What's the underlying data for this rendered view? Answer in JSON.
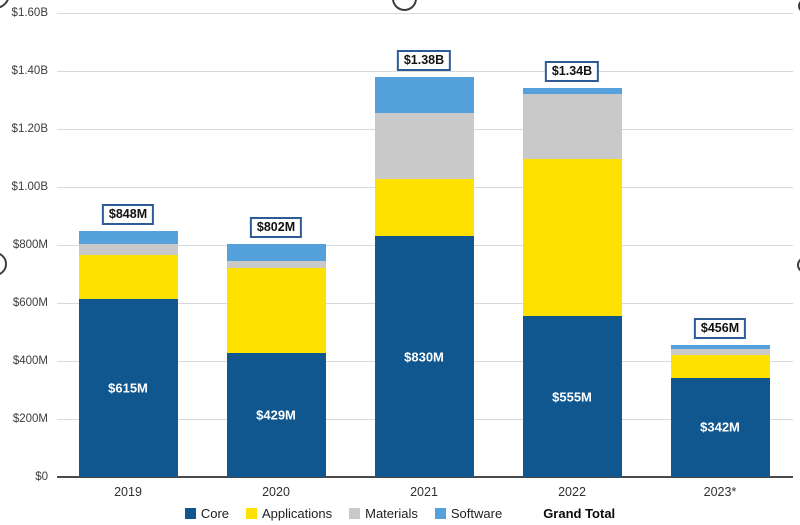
{
  "chart_data": {
    "type": "bar",
    "stacked": true,
    "title": "",
    "xlabel": "",
    "ylabel": "",
    "categories": [
      "2019",
      "2020",
      "2021",
      "2022",
      "2023*"
    ],
    "series": [
      {
        "name": "Core",
        "color": "#10568F",
        "values": [
          615,
          429,
          830,
          555,
          342
        ]
      },
      {
        "name": "Applications",
        "color": "#FFE100",
        "values": [
          152,
          293,
          197,
          540,
          78
        ]
      },
      {
        "name": "Materials",
        "color": "#C9C9C9",
        "values": [
          37,
          24,
          227,
          227,
          20
        ]
      },
      {
        "name": "Software",
        "color": "#55A1DB",
        "values": [
          44,
          56,
          126,
          18,
          16
        ]
      }
    ],
    "bar_value_labels": [
      "$615M",
      "$429M",
      "$830M",
      "$555M",
      "$342M"
    ],
    "total_labels": [
      "$848M",
      "$802M",
      "$1.38B",
      "$1.34B",
      "$456M"
    ],
    "totals_m": [
      848,
      802,
      1380,
      1340,
      456
    ],
    "y_ticks": [
      "$1.60B",
      "$1.40B",
      "$1.20B",
      "$1.00B",
      "$800M",
      "$600M",
      "$400M",
      "$200M",
      "$0"
    ],
    "ylim": [
      0,
      1600
    ],
    "grid": true,
    "legend_position": "bottom",
    "legend": [
      "Core",
      "Applications",
      "Materials",
      "Software"
    ],
    "legend_total_label": "Grand Total"
  },
  "colors": {
    "grid": "#D9D9D9",
    "baseline": "#4A4A4A",
    "total_box_border": "#2E5B97",
    "axis_text": "#3D3D3D",
    "in_bar_text": "#FFFFFF"
  }
}
